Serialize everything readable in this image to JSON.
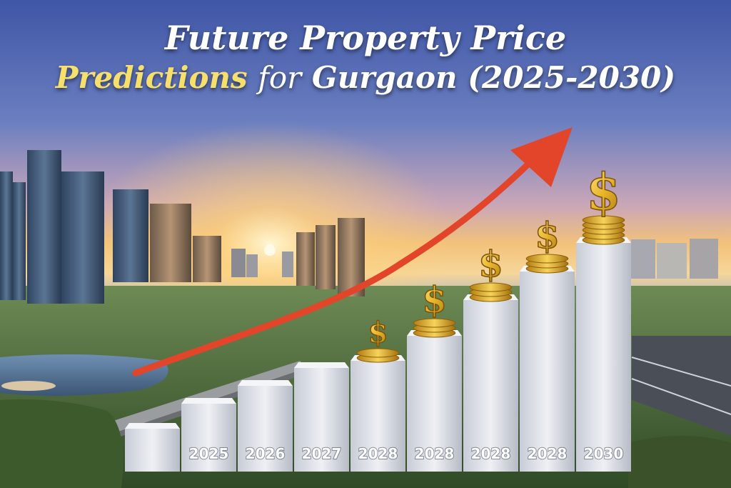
{
  "title": {
    "line1": "Future Property Price",
    "line2_highlight": "Predictions",
    "line2_mid": "for",
    "line2_bold": "Gurgaon",
    "line2_range": "(2025-2030)"
  },
  "icons": {
    "coin": "dollar-coin-stack-icon",
    "arrow": "trend-arrow-icon"
  },
  "colors": {
    "arrow": "#e2452a",
    "bar": "#d9dde4",
    "coin": "#e9b92c",
    "title_highlight": "#f6df6a",
    "sky": "#4a5ea8"
  },
  "chart_data": {
    "type": "bar",
    "categories": [
      "",
      "2025",
      "2026",
      "2027",
      "2028",
      "2028",
      "2028",
      "2028",
      "2030"
    ],
    "values": [
      60,
      95,
      120,
      145,
      155,
      190,
      240,
      280,
      320
    ],
    "coin_stacks": [
      0,
      0,
      0,
      0,
      2,
      3,
      3,
      3,
      5
    ],
    "ylim": [
      0,
      340
    ],
    "trend": "rising"
  }
}
